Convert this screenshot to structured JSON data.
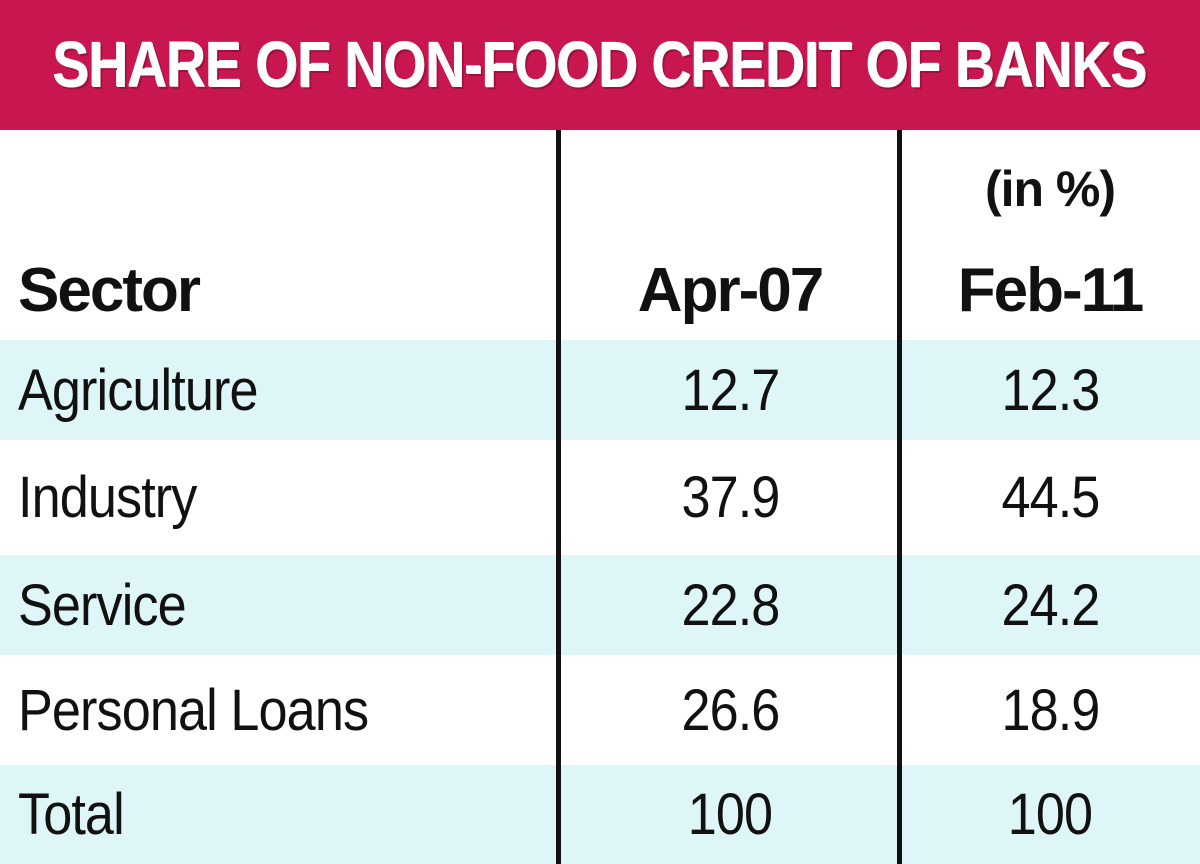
{
  "title": "SHARE OF NON-FOOD CREDIT OF BANKS",
  "unit_note": "(in %)",
  "colors": {
    "title_bar": "#c8174f",
    "title_text": "#ffffff",
    "row_shade": "#def6f7",
    "text": "#111111"
  },
  "chart_data": {
    "type": "table",
    "title": "SHARE OF NON-FOOD CREDIT OF BANKS",
    "unit": "(in %)",
    "columns": [
      "Sector",
      "Apr-07",
      "Feb-11"
    ],
    "rows": [
      {
        "sector": "Agriculture",
        "apr07": "12.7",
        "feb11": "12.3"
      },
      {
        "sector": "Industry",
        "apr07": "37.9",
        "feb11": "44.5"
      },
      {
        "sector": "Service",
        "apr07": "22.8",
        "feb11": "24.2"
      },
      {
        "sector": "Personal Loans",
        "apr07": "26.6",
        "feb11": "18.9"
      },
      {
        "sector": "Total",
        "apr07": "100",
        "feb11": "100"
      }
    ]
  }
}
